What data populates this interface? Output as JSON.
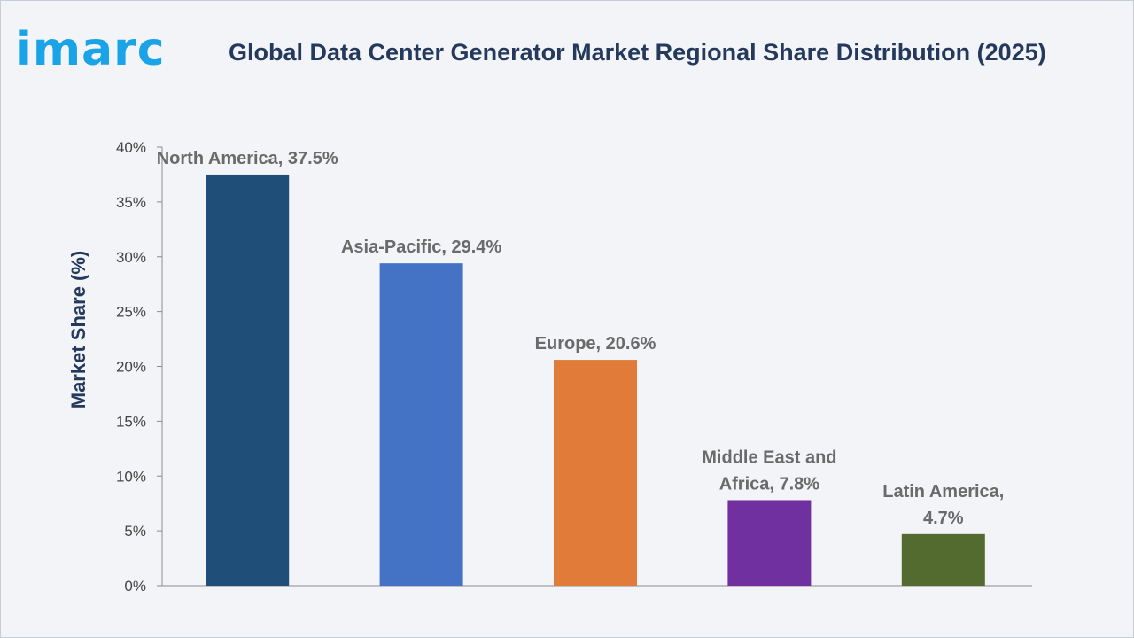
{
  "logo_text": "imarc",
  "title": "Global Data Center Generator Market Regional Share Distribution (2025)",
  "chart_data": {
    "type": "bar",
    "title": "Global Data Center Generator Market Regional Share Distribution (2025)",
    "xlabel": "",
    "ylabel": "Market Share (%)",
    "ylim": [
      0,
      40
    ],
    "yticks": [
      "0%",
      "5%",
      "10%",
      "15%",
      "20%",
      "25%",
      "30%",
      "35%",
      "40%"
    ],
    "categories": [
      "North America",
      "Asia-Pacific",
      "Europe",
      "Middle East and Africa",
      "Latin America"
    ],
    "values": [
      37.5,
      29.4,
      20.6,
      7.8,
      4.7
    ],
    "data_labels": [
      [
        "North America, 37.5%"
      ],
      [
        "Asia-Pacific, 29.4%"
      ],
      [
        "Europe, 20.6%"
      ],
      [
        "Middle East and",
        "Africa, 7.8%"
      ],
      [
        "Latin America,",
        "4.7%"
      ]
    ],
    "colors": [
      "#1f4e79",
      "#4472c4",
      "#e07b39",
      "#7030a0",
      "#546b2f"
    ],
    "grid": false,
    "legend": "none"
  }
}
